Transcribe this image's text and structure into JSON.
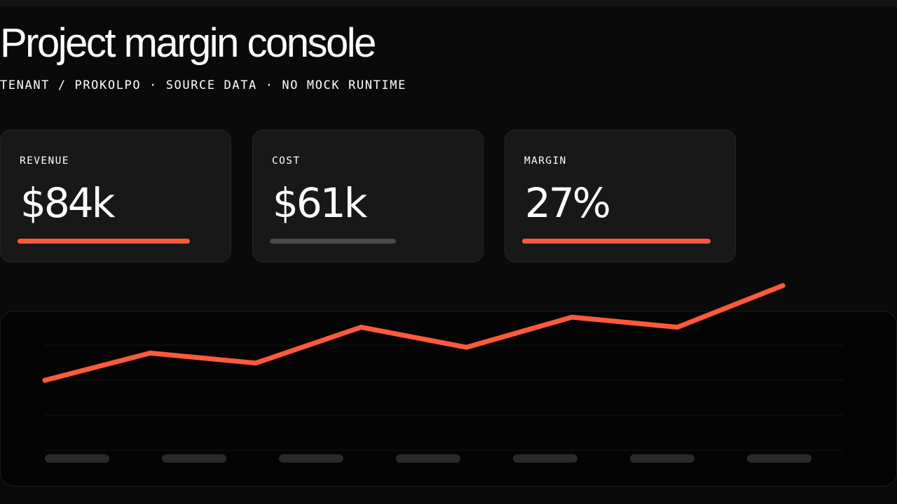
{
  "header": {
    "title": "Project margin console",
    "subtitle": "TENANT / PROKOLPO · SOURCE DATA · NO MOCK RUNTIME"
  },
  "metrics": [
    {
      "label": "REVENUE",
      "value": "$84k",
      "bar_fraction": 0.75,
      "bar_color": "#ff5a3c"
    },
    {
      "label": "COST",
      "value": "$61k",
      "bar_fraction": 0.55,
      "bar_color": "#4a4a4a"
    },
    {
      "label": "MARGIN",
      "value": "27%",
      "bar_fraction": 0.82,
      "bar_color": "#ff5a3c"
    }
  ],
  "colors": {
    "accent": "#ff5a3c",
    "background": "#0a0a0a",
    "card": "#181818",
    "placeholder": "#2a2a2a"
  },
  "chart_data": {
    "type": "line",
    "title": "",
    "xlabel": "",
    "ylabel": "",
    "x": [
      1,
      2,
      3,
      4,
      5,
      6,
      7,
      8
    ],
    "ylim": [
      0,
      100
    ],
    "grid": true,
    "legend": "none",
    "series": [
      {
        "values": [
          34,
          53,
          46,
          71,
          57,
          78,
          71,
          100
        ],
        "color": "#ff5a3c"
      }
    ],
    "tick_label_placeholders": 7
  }
}
